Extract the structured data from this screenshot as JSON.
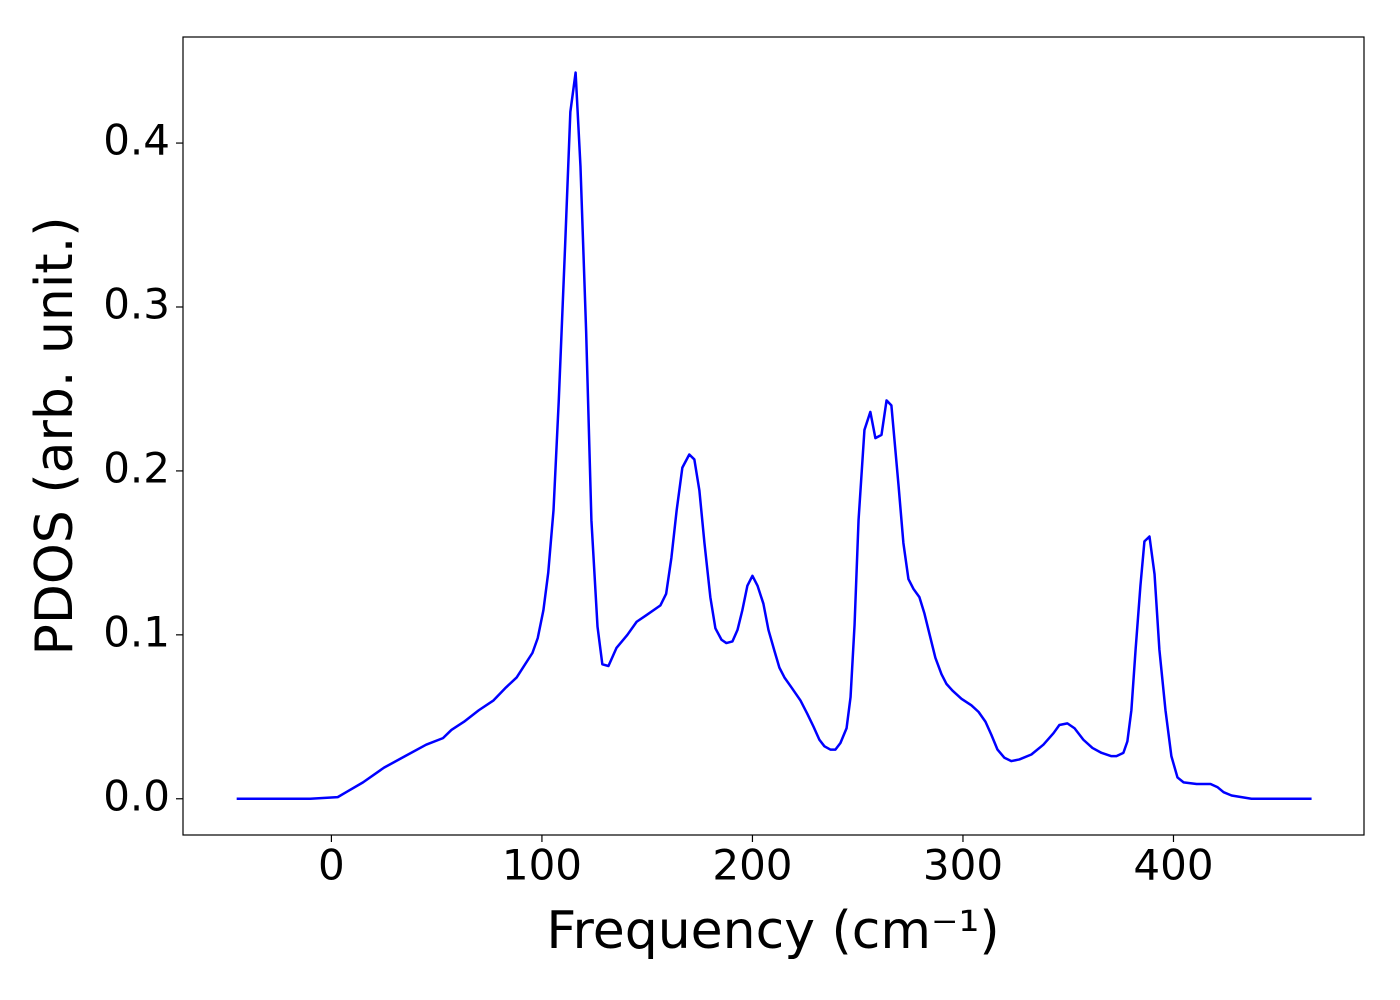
{
  "chart_data": {
    "type": "line",
    "xlabel": "Frequency (cm⁻¹)",
    "ylabel": "PDOS (arb. unit.)",
    "xlim": [
      -70.5,
      490.5
    ],
    "ylim": [
      -0.0221,
      0.4647
    ],
    "xticks": [
      0,
      100,
      200,
      300,
      400
    ],
    "yticks": [
      {
        "value": 0,
        "label": "0.0"
      },
      0.1,
      0.2,
      0.3,
      0.4
    ],
    "grid": false,
    "series": [
      {
        "color": "#0000ff",
        "x": [
          -45,
          -10,
          3,
          7,
          15,
          25,
          35,
          45,
          53,
          57,
          63,
          70,
          77,
          83,
          88,
          92,
          95.5,
          98,
          100.7,
          103,
          105.5,
          108,
          111,
          113.5,
          116,
          118.3,
          121,
          123.5,
          126.4,
          128.7,
          131.6,
          135.4,
          140.6,
          145,
          149.6,
          156.3,
          159,
          161.5,
          164,
          166.7,
          170,
          172.4,
          174.8,
          177.2,
          180,
          182.4,
          185.3,
          187.6,
          190.5,
          192.9,
          195.2,
          197.6,
          200,
          202.4,
          205.2,
          207.6,
          210.5,
          212.8,
          215.2,
          218.5,
          222.8,
          226,
          229,
          231.8,
          234.2,
          237,
          239.4,
          241.8,
          244.7,
          246.6,
          248.5,
          250.4,
          253.2,
          256,
          258.4,
          261.3,
          263.7,
          266,
          269.4,
          271.7,
          274.1,
          276.5,
          279.3,
          281.7,
          284,
          286.9,
          289.8,
          292.2,
          295,
          299.3,
          304,
          307.4,
          310.7,
          313.5,
          316.4,
          319.7,
          323,
          326.8,
          332.5,
          338.2,
          343,
          345.8,
          349.6,
          353,
          357.2,
          361.5,
          365.8,
          370.5,
          372.9,
          376.2,
          378.1,
          380,
          382,
          384.3,
          386.2,
          388.6,
          391,
          393.3,
          396.2,
          399,
          401.9,
          404.8,
          411,
          417.6,
          421,
          423.8,
          427.6,
          432.3,
          437,
          465.6
        ],
        "values": [
          0,
          0,
          0.001,
          0.004,
          0.01,
          0.019,
          0.026,
          0.033,
          0.037,
          0.042,
          0.047,
          0.054,
          0.06,
          0.068,
          0.074,
          0.082,
          0.089,
          0.098,
          0.115,
          0.138,
          0.176,
          0.243,
          0.337,
          0.419,
          0.443,
          0.386,
          0.285,
          0.17,
          0.105,
          0.082,
          0.081,
          0.092,
          0.1,
          0.108,
          0.112,
          0.118,
          0.125,
          0.147,
          0.176,
          0.202,
          0.21,
          0.207,
          0.188,
          0.156,
          0.123,
          0.104,
          0.097,
          0.095,
          0.096,
          0.103,
          0.115,
          0.13,
          0.136,
          0.13,
          0.119,
          0.103,
          0.09,
          0.08,
          0.074,
          0.068,
          0.06,
          0.052,
          0.044,
          0.036,
          0.032,
          0.03,
          0.03,
          0.034,
          0.043,
          0.062,
          0.106,
          0.17,
          0.225,
          0.236,
          0.22,
          0.222,
          0.243,
          0.24,
          0.191,
          0.156,
          0.134,
          0.128,
          0.123,
          0.113,
          0.101,
          0.086,
          0.076,
          0.07,
          0.066,
          0.061,
          0.057,
          0.053,
          0.047,
          0.039,
          0.03,
          0.025,
          0.023,
          0.024,
          0.027,
          0.033,
          0.04,
          0.045,
          0.046,
          0.043,
          0.036,
          0.031,
          0.028,
          0.026,
          0.026,
          0.028,
          0.035,
          0.054,
          0.091,
          0.13,
          0.157,
          0.16,
          0.137,
          0.091,
          0.054,
          0.026,
          0.013,
          0.01,
          0.009,
          0.009,
          0.007,
          0.004,
          0.002,
          0.001,
          0,
          0
        ]
      }
    ]
  }
}
